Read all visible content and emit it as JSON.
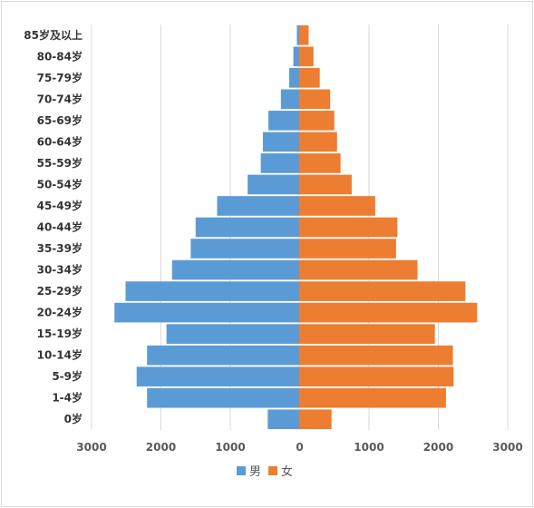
{
  "chart_data": {
    "type": "bar",
    "orientation": "horizontal",
    "categories": [
      "0岁",
      "1-4岁",
      "5-9岁",
      "10-14岁",
      "15-19岁",
      "20-24岁",
      "25-29岁",
      "30-34岁",
      "35-39岁",
      "40-44岁",
      "45-49岁",
      "50-54岁",
      "55-59岁",
      "60-64岁",
      "65-69岁",
      "70-74岁",
      "75-79岁",
      "80-84岁",
      "85岁及以上"
    ],
    "series": [
      {
        "name": "男",
        "color": "#5b9bd5",
        "values": [
          460,
          2200,
          2350,
          2200,
          1920,
          2670,
          2510,
          1840,
          1570,
          1500,
          1190,
          750,
          560,
          530,
          450,
          270,
          150,
          90,
          40
        ]
      },
      {
        "name": "女",
        "color": "#ed7d31",
        "values": [
          460,
          2110,
          2220,
          2210,
          1950,
          2560,
          2390,
          1700,
          1390,
          1410,
          1090,
          750,
          590,
          540,
          500,
          440,
          290,
          200,
          130
        ]
      }
    ],
    "xlim": [
      -3000,
      3000
    ],
    "xticks": [
      -3000,
      -2000,
      -1000,
      0,
      1000,
      2000,
      3000
    ],
    "xtick_labels": [
      "3000",
      "2000",
      "1000",
      "0",
      "1000",
      "2000",
      "3000"
    ],
    "grid": true,
    "legend": "bottom",
    "title": "",
    "xlabel": "",
    "ylabel": ""
  }
}
